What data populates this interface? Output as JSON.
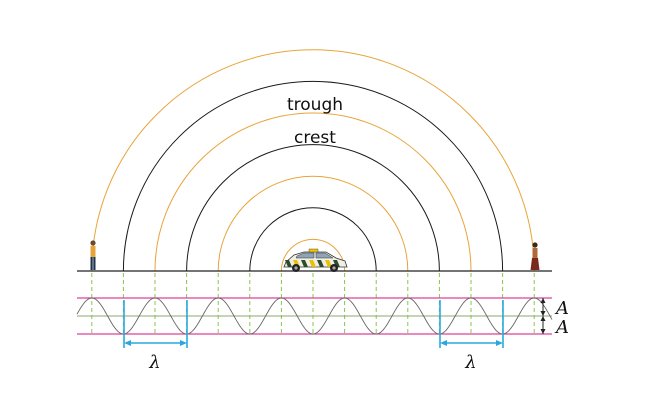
{
  "labels": {
    "trough": "trough",
    "crest": "crest",
    "wavelength_left": "λ",
    "wavelength_right": "λ",
    "amplitude_top": "A",
    "amplitude_bottom": "A"
  },
  "colors": {
    "crest_arc": "#e8a43a",
    "trough_arc": "#1a1a1a",
    "ground": "#222222",
    "guide_lines": "#e0409a",
    "center_line": "#8aa86a",
    "dashed_markers": "#8bc34a",
    "wavelength_marker": "#29a8e0",
    "wave_curve": "#666666",
    "car_body": "#f0efe6",
    "car_stripes": "#2e4a2a",
    "car_light": "#f5c400"
  },
  "icons": {
    "car": "police-car-icon",
    "left_person": "standing-person-icon",
    "right_person": "standing-person-icon"
  }
}
